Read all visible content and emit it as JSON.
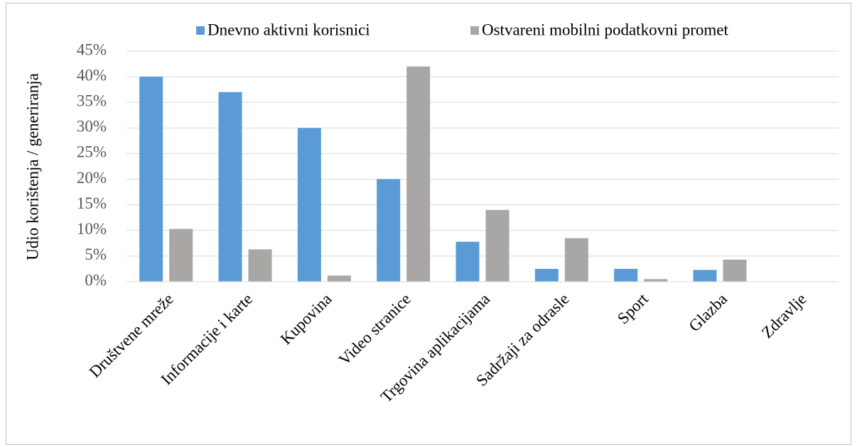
{
  "chart_data": {
    "type": "bar",
    "y_label": "Udio korištenja / generiranja",
    "categories": [
      "Društvene mreže",
      "Informacije i karte",
      "Kupovina",
      "Video stranice",
      "Trgovina aplikacijama",
      "Sadržaji za odrasle",
      "Sport",
      "Glazba",
      "Zdravlje"
    ],
    "series": [
      {
        "name": "Dnevno aktivni korisnici",
        "color": "#5b9bd5",
        "values": [
          40,
          37,
          30,
          20,
          7.8,
          2.5,
          2.5,
          2.3,
          0
        ]
      },
      {
        "name": "Ostvareni mobilni podatkovni promet",
        "color": "#a9a6a6",
        "values": [
          10.3,
          6.3,
          1.2,
          42,
          14,
          8.5,
          0.5,
          4.3,
          0
        ]
      }
    ],
    "ylim": [
      0,
      45
    ],
    "yticks": [
      {
        "value": 0,
        "label": "0%"
      },
      {
        "value": 5,
        "label": "5%"
      },
      {
        "value": 10,
        "label": "10%"
      },
      {
        "value": 15,
        "label": "15%"
      },
      {
        "value": 20,
        "label": "20%"
      },
      {
        "value": 25,
        "label": "25%"
      },
      {
        "value": 30,
        "label": "30%"
      },
      {
        "value": 35,
        "label": "35%"
      },
      {
        "value": 40,
        "label": "40%"
      },
      {
        "value": 45,
        "label": "45%"
      }
    ],
    "grid": true,
    "legend": "top"
  }
}
